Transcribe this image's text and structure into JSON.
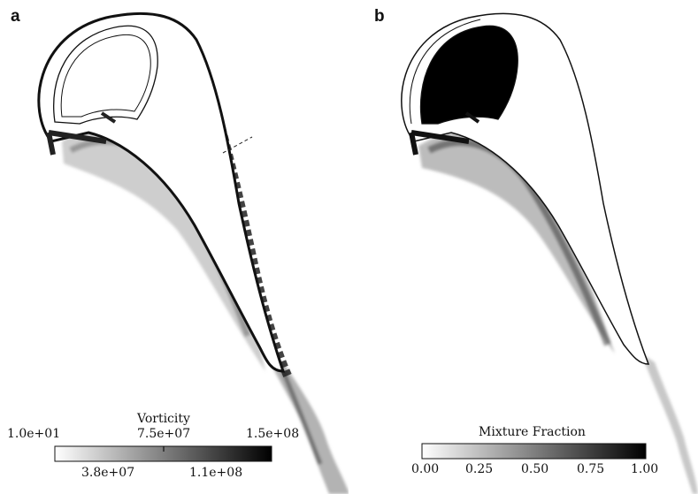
{
  "panels": [
    {
      "label": "a",
      "colorbar": {
        "title": "Vorticity",
        "ticks_top": [
          "1.0e+01",
          "7.5e+07",
          "1.5e+08"
        ],
        "ticks_bottom": [
          "3.8e+07",
          "1.1e+08"
        ]
      }
    },
    {
      "label": "b",
      "colorbar": {
        "title": "Mixture Fraction",
        "ticks": [
          "0.00",
          "0.25",
          "0.50",
          "0.75",
          "1.00"
        ]
      }
    }
  ],
  "colors": {
    "background": "#ffffff",
    "outline": "#111111",
    "gradient_low": "#ffffff",
    "gradient_high": "#000000"
  }
}
